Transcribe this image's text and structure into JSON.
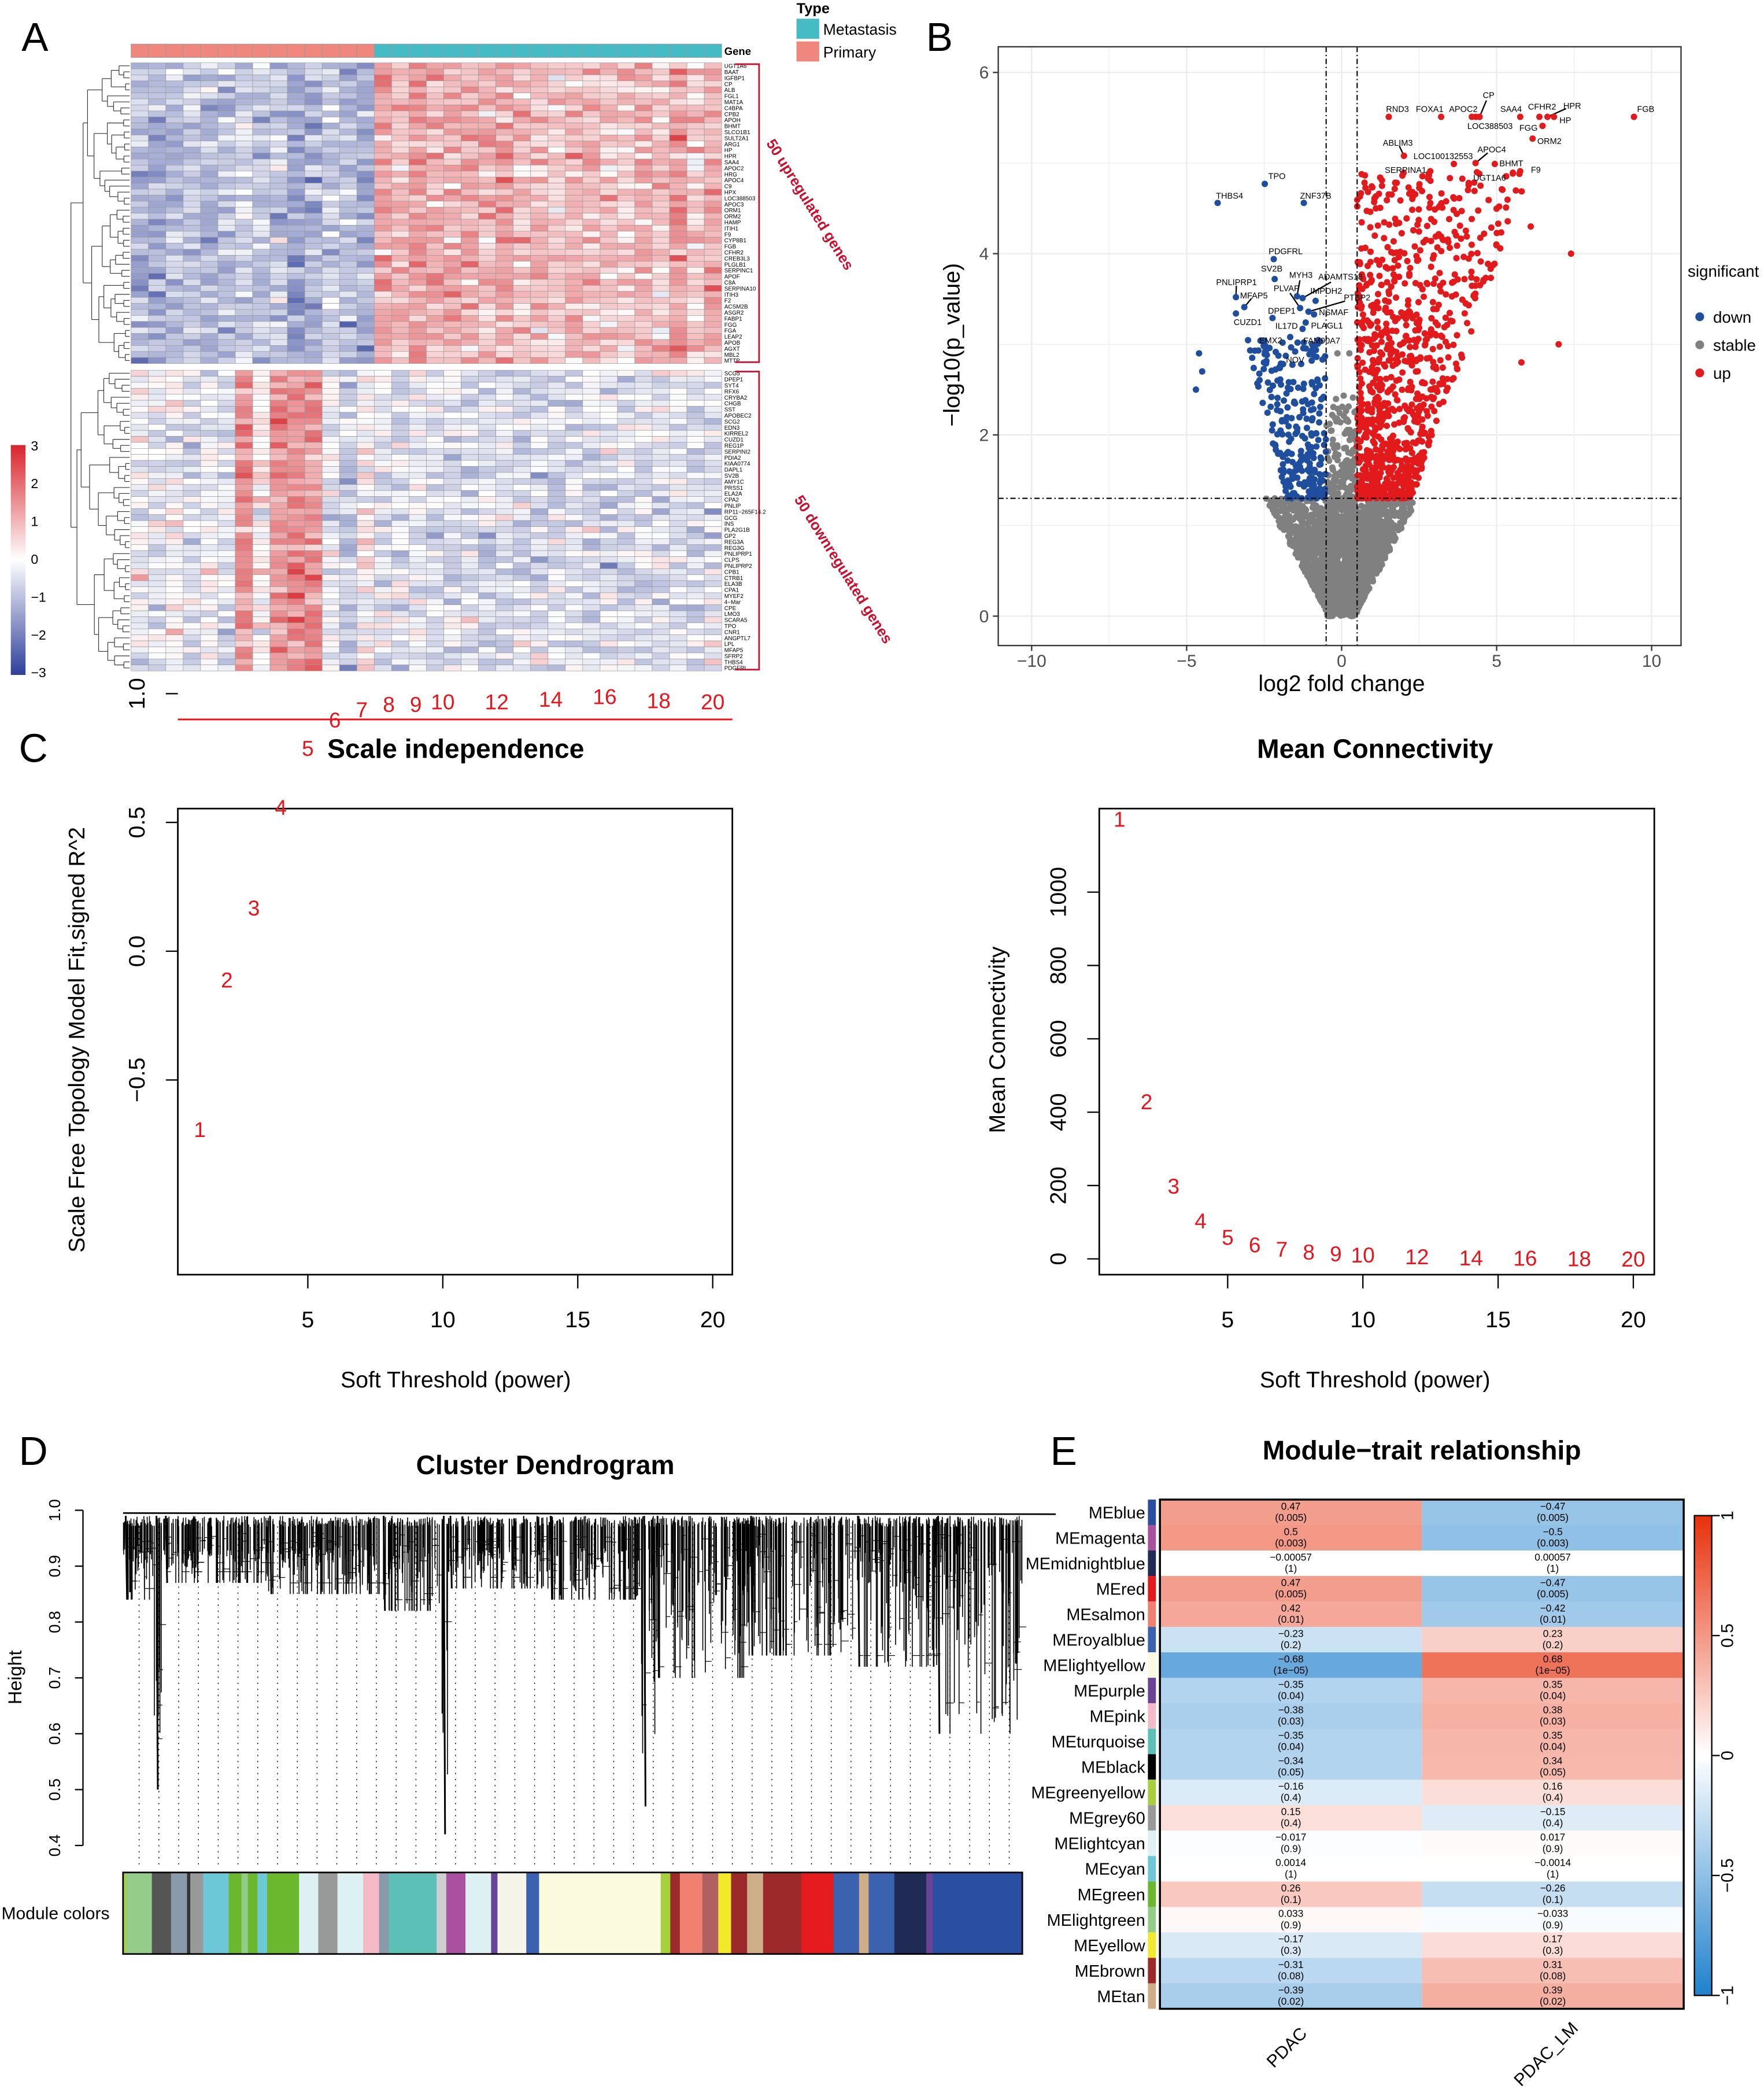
{
  "figure": {
    "panel_labels": [
      "A",
      "B",
      "C",
      "D",
      "E"
    ]
  },
  "chart_data": [
    {
      "type": "heatmap",
      "id": "A",
      "annotation": {
        "title": "Type",
        "header": "Gene",
        "groups": [
          {
            "label": "Metastasis",
            "color": "#45BCC5",
            "n": 20
          },
          {
            "label": "Primary",
            "color": "#F0877D",
            "n": 14
          }
        ]
      },
      "color_scale": {
        "ticks": [
          "3",
          "2",
          "1",
          "0",
          "−1",
          "−2",
          "−3"
        ],
        "range": [
          -3,
          3
        ],
        "low": "#2D3F9A",
        "mid": "#FFFFFF",
        "high": "#D8242A"
      },
      "up": {
        "label": "50 upregulated genes",
        "genes": [
          "UGT1A6",
          "BAAT",
          "IGFBP1",
          "CP",
          "ALB",
          "FGL1",
          "MAT1A",
          "C4BPA",
          "CPB2",
          "APOH",
          "BHMT",
          "SLCO1B1",
          "SULT2A1",
          "ARG1",
          "HP",
          "HPR",
          "SAA4",
          "APOC2",
          "HRG",
          "APOC4",
          "C9",
          "HPX",
          "LOC388503",
          "APOC3",
          "ORM1",
          "ORM2",
          "HAMP",
          "ITIH1",
          "F9",
          "CYP8B1",
          "FGB",
          "CFHR2",
          "CREB3L3",
          "PLGLB1",
          "SERPINC1",
          "APOF",
          "C8A",
          "SERPINA10",
          "ITIH3",
          "F2",
          "ACSM2B",
          "ASGR2",
          "FABP1",
          "FGG",
          "FGA",
          "LEAP2",
          "APOB",
          "AGXT",
          "MBL2",
          "MTTP"
        ]
      },
      "down": {
        "label": "50 downregulated genes",
        "genes": [
          "SCG5",
          "DPEP1",
          "SYT4",
          "RFX6",
          "CRYBA2",
          "CHGB",
          "SST",
          "APOBEC2",
          "SCG2",
          "EDN3",
          "KIRREL2",
          "CUZD1",
          "REG1P",
          "SERPINI2",
          "PDIA2",
          "KIAA0774",
          "DAPL1",
          "SV2B",
          "AMY1C",
          "PRSS1",
          "ELA2A",
          "CPA2",
          "PNLIP",
          "RP11−265F14.2",
          "GCG",
          "INS",
          "PLA2G1B",
          "GP2",
          "REG3A",
          "REG3G",
          "PNLIPRP1",
          "CLPS",
          "PNLIPRP2",
          "CPB1",
          "CTRB1",
          "ELA3B",
          "CPA1",
          "MYEF2",
          "4−Mar",
          "CPE",
          "LMO3",
          "SCARA5",
          "TPO",
          "CNR1",
          "ANGPTL7",
          "LPL",
          "MFAP5",
          "SFRP2",
          "THBS4",
          "PDGFRL"
        ]
      }
    },
    {
      "type": "scatter",
      "id": "B",
      "xlabel": "log2 fold change",
      "ylabel": "−log10(p_value)",
      "xlim": [
        -11.1,
        10.95
      ],
      "ylim": [
        -0.32,
        6.28
      ],
      "xticks": [
        -10,
        -5,
        0,
        5,
        10
      ],
      "xtick_labels": [
        "−10",
        "−5",
        "0",
        "5",
        "10"
      ],
      "yticks": [
        0,
        2,
        4,
        6
      ],
      "ytick_labels": [
        "0",
        "2",
        "4",
        "6"
      ],
      "fc_cutoff": 0.5,
      "p_cutoff": 1.3,
      "legend_title": "significant",
      "legend": [
        {
          "label": "down",
          "color": "#1F4E9E"
        },
        {
          "label": "stable",
          "color": "#808080"
        },
        {
          "label": "up",
          "color": "#E31A1C"
        }
      ],
      "labeled_points": [
        {
          "gene": "RND3",
          "x": 1.52,
          "y": 5.51,
          "group": "up"
        },
        {
          "gene": "FOXA1",
          "x": 3.21,
          "y": 5.51,
          "group": "up"
        },
        {
          "gene": "APOC2",
          "x": 4.2,
          "y": 5.51,
          "group": "up"
        },
        {
          "gene": "CP",
          "x": 4.45,
          "y": 5.51,
          "group": "up"
        },
        {
          "gene": "LOC388503",
          "x": 4.33,
          "y": 5.51,
          "group": "up"
        },
        {
          "gene": "SAA4",
          "x": 5.76,
          "y": 5.51,
          "group": "up"
        },
        {
          "gene": "CFHR2",
          "x": 6.38,
          "y": 5.51,
          "group": "up"
        },
        {
          "gene": "HPR",
          "x": 6.64,
          "y": 5.51,
          "group": "up"
        },
        {
          "gene": "HP",
          "x": 6.85,
          "y": 5.51,
          "group": "up"
        },
        {
          "gene": "FGB",
          "x": 9.43,
          "y": 5.51,
          "group": "up"
        },
        {
          "gene": "FGG",
          "x": 6.48,
          "y": 5.41,
          "group": "up"
        },
        {
          "gene": "ORM2",
          "x": 6.16,
          "y": 5.27,
          "group": "up"
        },
        {
          "gene": "ABLIM3",
          "x": 2.01,
          "y": 5.08,
          "group": "up"
        },
        {
          "gene": "LOC100132553",
          "x": 3.62,
          "y": 4.99,
          "group": "up"
        },
        {
          "gene": "APOC4",
          "x": 4.32,
          "y": 5.0,
          "group": "up"
        },
        {
          "gene": "BHMT",
          "x": 4.94,
          "y": 4.99,
          "group": "up"
        },
        {
          "gene": "SERPINA1",
          "x": 2.86,
          "y": 4.91,
          "group": "up"
        },
        {
          "gene": "F9",
          "x": 5.76,
          "y": 4.91,
          "group": "up"
        },
        {
          "gene": "UGT1A6",
          "x": 4.48,
          "y": 4.75,
          "group": "up"
        },
        {
          "gene": "THBS4",
          "x": -4.0,
          "y": 4.56,
          "group": "down"
        },
        {
          "gene": "TPO",
          "x": -2.48,
          "y": 4.77,
          "group": "down"
        },
        {
          "gene": "ZNF37B",
          "x": -1.22,
          "y": 4.56,
          "group": "down"
        },
        {
          "gene": "PDGFRL",
          "x": -2.19,
          "y": 3.94,
          "group": "down"
        },
        {
          "gene": "SV2B",
          "x": -2.16,
          "y": 3.72,
          "group": "down"
        },
        {
          "gene": "PNLIPRP1",
          "x": -3.41,
          "y": 3.52,
          "group": "down"
        },
        {
          "gene": "MFAP5",
          "x": -3.14,
          "y": 3.41,
          "group": "down"
        },
        {
          "gene": "CUZD1",
          "x": -3.41,
          "y": 3.34,
          "group": "down"
        },
        {
          "gene": "MYH3",
          "x": -1.44,
          "y": 3.53,
          "group": "down"
        },
        {
          "gene": "ADAMTS18",
          "x": -1.26,
          "y": 3.51,
          "group": "down"
        },
        {
          "gene": "IMPDH2",
          "x": -0.84,
          "y": 3.48,
          "group": "down"
        },
        {
          "gene": "PLVAP",
          "x": -1.34,
          "y": 3.4,
          "group": "down"
        },
        {
          "gene": "PTBP2",
          "x": -1.07,
          "y": 3.36,
          "group": "down"
        },
        {
          "gene": "NSMAF",
          "x": -0.89,
          "y": 3.33,
          "group": "down"
        },
        {
          "gene": "DPEP1",
          "x": -2.23,
          "y": 3.29,
          "group": "down"
        },
        {
          "gene": "PLAGL1",
          "x": -1.16,
          "y": 3.24,
          "group": "down"
        },
        {
          "gene": "IL17D",
          "x": -1.26,
          "y": 3.17,
          "group": "down"
        },
        {
          "gene": "EMX2",
          "x": -1.66,
          "y": 3.08,
          "group": "down"
        },
        {
          "gene": "FAM90A7",
          "x": -1.22,
          "y": 3.02,
          "group": "down"
        },
        {
          "gene": "NOV",
          "x": -1.5,
          "y": 2.92,
          "group": "down"
        }
      ]
    },
    {
      "type": "scatter",
      "id": "C-scale",
      "title": "Scale independence",
      "xlabel": "Soft Threshold (power)",
      "ylabel": "Scale Free Topology Model Fit,signed R^2",
      "xticks": [
        5,
        10,
        15,
        20
      ],
      "yticks": [
        -0.5,
        0.0,
        0.5,
        1.0
      ],
      "ytick_labels": [
        "−0.5",
        "0.0",
        "0.5",
        "1.0"
      ],
      "ylim": [
        -0.75,
        1.05
      ],
      "hline": 0.9,
      "powers": [
        1,
        2,
        3,
        4,
        5,
        6,
        7,
        8,
        9,
        10,
        12,
        14,
        16,
        18,
        20
      ],
      "values": [
        -0.69,
        -0.11,
        0.17,
        0.56,
        0.79,
        0.9,
        0.94,
        0.96,
        0.96,
        0.97,
        0.97,
        0.98,
        0.99,
        0.975,
        0.97
      ]
    },
    {
      "type": "scatter",
      "id": "C-connectivity",
      "title": "Mean Connectivity",
      "xlabel": "Soft Threshold (power)",
      "ylabel": "Mean Connectivity",
      "xticks": [
        5,
        10,
        15,
        20
      ],
      "yticks": [
        0,
        200,
        400,
        600,
        800,
        1000
      ],
      "ylim": [
        -45,
        1225
      ],
      "powers": [
        1,
        2,
        3,
        4,
        5,
        6,
        7,
        8,
        9,
        10,
        12,
        14,
        16,
        18,
        20
      ],
      "values": [
        1200,
        430,
        200,
        105,
        60,
        40,
        28,
        20,
        15,
        12,
        7,
        4,
        3,
        2,
        1
      ]
    },
    {
      "type": "dendrogram",
      "id": "D",
      "title": "Cluster Dendrogram",
      "ylabel": "Height",
      "yticks": [
        0.4,
        0.5,
        0.6,
        0.7,
        0.8,
        0.9,
        1.0
      ],
      "ytick_labels": [
        "0.4",
        "0.5",
        "0.6",
        "0.7",
        "0.8",
        "0.9",
        "1.0"
      ],
      "colors_label": "Module colors"
    },
    {
      "type": "heatmap",
      "id": "E",
      "title": "Module−trait relationship",
      "columns": [
        "PDAC",
        "PDAC_LM"
      ],
      "colorbar_ticks": [
        "1",
        "0.5",
        "0",
        "−0.5",
        "−1"
      ],
      "rows": [
        {
          "module": "MEblue",
          "color": "#2B4FA0",
          "r": [
            0.47,
            -0.47
          ],
          "p": [
            "0.005",
            "0.005"
          ]
        },
        {
          "module": "MEmagenta",
          "color": "#A9509E",
          "r": [
            0.5,
            -0.5
          ],
          "p": [
            "0.003",
            "0.003"
          ]
        },
        {
          "module": "MEmidnightblue",
          "color": "#1F2A55",
          "r": [
            -0.00057,
            0.00057
          ],
          "p": [
            "1",
            "1"
          ]
        },
        {
          "module": "MEred",
          "color": "#E41A1C",
          "r": [
            0.47,
            -0.47
          ],
          "p": [
            "0.005",
            "0.005"
          ]
        },
        {
          "module": "MEsalmon",
          "color": "#F08070",
          "r": [
            0.42,
            -0.42
          ],
          "p": [
            "0.01",
            "0.01"
          ]
        },
        {
          "module": "MEroyalblue",
          "color": "#3A62AE",
          "r": [
            -0.23,
            0.23
          ],
          "p": [
            "0.2",
            "0.2"
          ]
        },
        {
          "module": "MElightyellow",
          "color": "#FBFADF",
          "r": [
            -0.68,
            0.68
          ],
          "p": [
            "1e−05",
            "1e−05"
          ]
        },
        {
          "module": "MEpurple",
          "color": "#6A4397",
          "r": [
            -0.35,
            0.35
          ],
          "p": [
            "0.04",
            "0.04"
          ]
        },
        {
          "module": "MEpink",
          "color": "#F4BAC6",
          "r": [
            -0.38,
            0.38
          ],
          "p": [
            "0.03",
            "0.03"
          ]
        },
        {
          "module": "MEturquoise",
          "color": "#5DC0B6",
          "r": [
            -0.35,
            0.35
          ],
          "p": [
            "0.04",
            "0.04"
          ]
        },
        {
          "module": "MEblack",
          "color": "#000000",
          "r": [
            -0.34,
            0.34
          ],
          "p": [
            "0.05",
            "0.05"
          ]
        },
        {
          "module": "MEgreenyellow",
          "color": "#A8CF3C",
          "r": [
            -0.16,
            0.16
          ],
          "p": [
            "0.4",
            "0.4"
          ]
        },
        {
          "module": "MEgrey60",
          "color": "#999999",
          "r": [
            0.15,
            -0.15
          ],
          "p": [
            "0.4",
            "0.4"
          ]
        },
        {
          "module": "MElightcyan",
          "color": "#DDF0F4",
          "r": [
            -0.017,
            0.017
          ],
          "p": [
            "0.9",
            "0.9"
          ]
        },
        {
          "module": "MEcyan",
          "color": "#6CC7D6",
          "r": [
            0.0014,
            -0.0014
          ],
          "p": [
            "1",
            "1"
          ]
        },
        {
          "module": "MEgreen",
          "color": "#6BB82E",
          "r": [
            0.26,
            -0.26
          ],
          "p": [
            "0.1",
            "0.1"
          ]
        },
        {
          "module": "MElightgreen",
          "color": "#94CD8A",
          "r": [
            0.033,
            -0.033
          ],
          "p": [
            "0.9",
            "0.9"
          ]
        },
        {
          "module": "MEyellow",
          "color": "#F2E92B",
          "r": [
            -0.17,
            0.17
          ],
          "p": [
            "0.3",
            "0.3"
          ]
        },
        {
          "module": "MEbrown",
          "color": "#9C2A2A",
          "r": [
            -0.31,
            0.31
          ],
          "p": [
            "0.08",
            "0.08"
          ]
        },
        {
          "module": "MEtan",
          "color": "#CDAE88",
          "r": [
            -0.39,
            0.39
          ],
          "p": [
            "0.02",
            "0.02"
          ]
        }
      ]
    }
  ]
}
